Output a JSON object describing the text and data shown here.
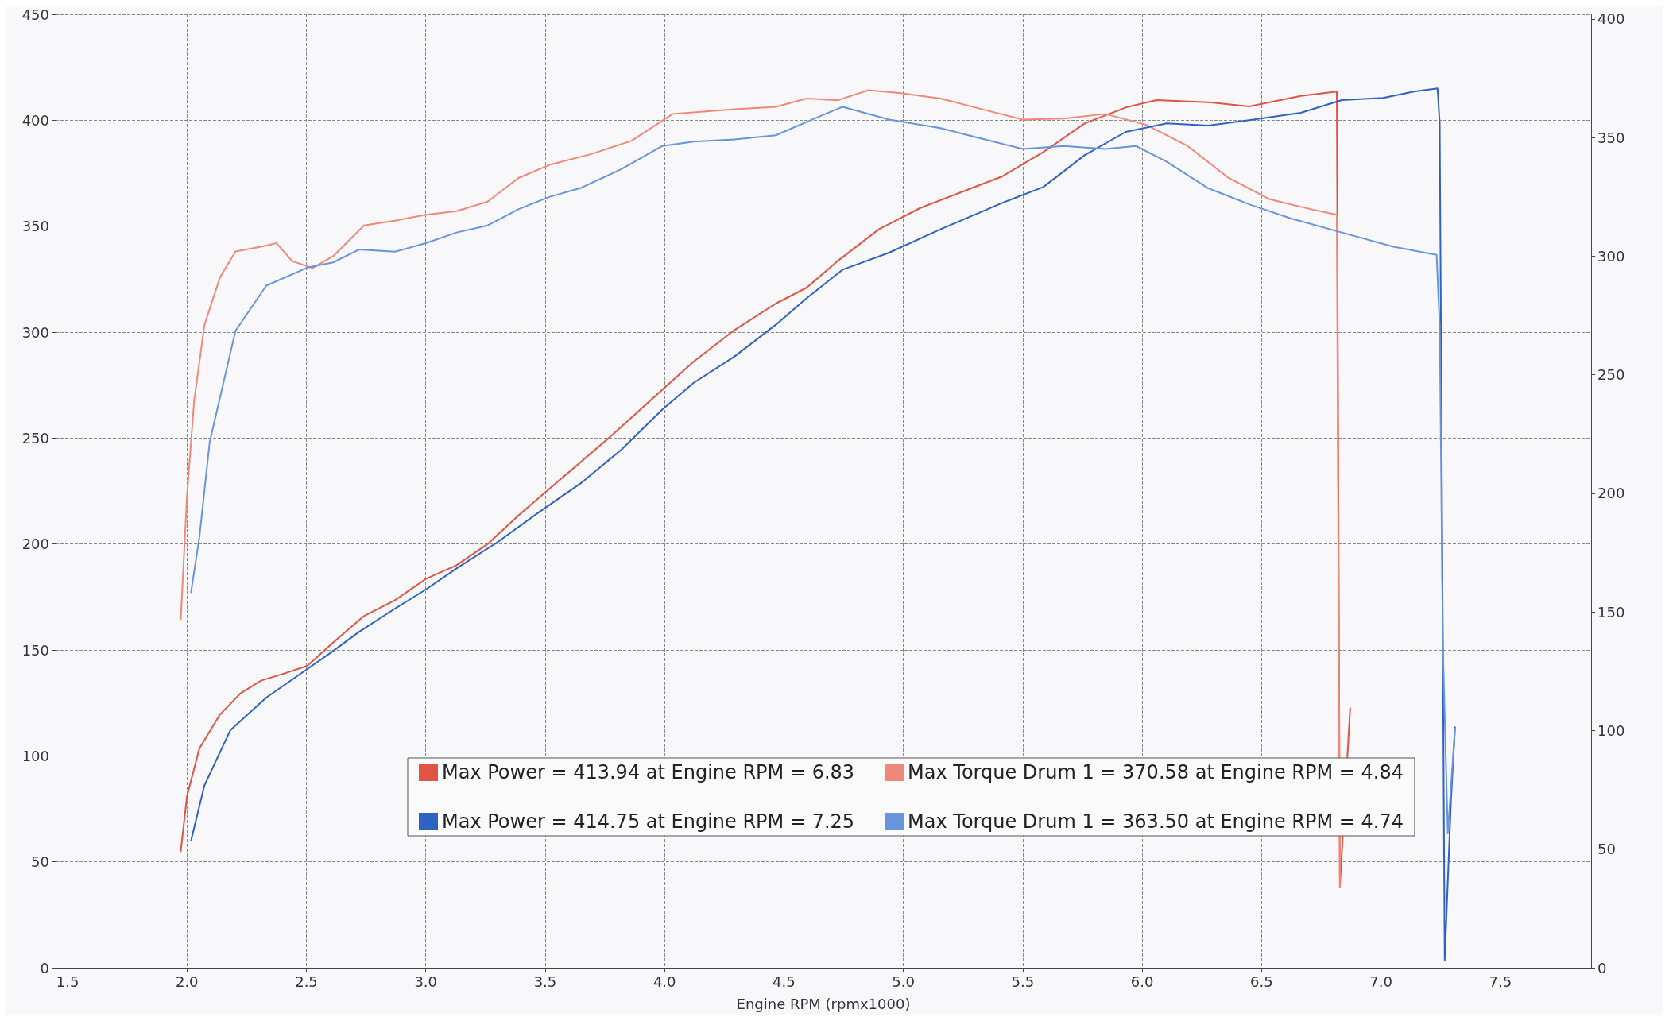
{
  "chart_data": {
    "type": "line",
    "xlabel": "Engine RPM (rpmx1000)",
    "xlim": [
      1.45,
      7.88
    ],
    "xticks": [
      1.5,
      {
        "value": 2,
        "label": "2.0"
      },
      2.5,
      {
        "value": 3,
        "label": "3.0"
      },
      3.5,
      {
        "value": 4,
        "label": "4.0"
      },
      4.5,
      {
        "value": 5,
        "label": "5.0"
      },
      5.5,
      {
        "value": 6,
        "label": "6.0"
      },
      6.5,
      {
        "value": 7,
        "label": "7.0"
      },
      7.5
    ],
    "ylim": [
      0,
      450
    ],
    "yticks": [
      0,
      50,
      100,
      150,
      200,
      250,
      300,
      350,
      400,
      450
    ],
    "y2lim": [
      0,
      402
    ],
    "y2ticks": [
      0,
      50,
      100,
      150,
      200,
      250,
      300,
      350,
      400
    ],
    "grid": true,
    "legend": "bottom",
    "marker": "none",
    "line_style": "solid",
    "series": [
      {
        "name": "Max Power = 413.94 at Engine RPM = 6.83",
        "color": "#e05444",
        "x": [
          1.974,
          2.0,
          2.052,
          2.138,
          2.224,
          2.31,
          2.397,
          2.504,
          2.612,
          2.741,
          2.871,
          3.0,
          3.129,
          3.259,
          3.388,
          3.517,
          3.647,
          3.776,
          3.948,
          4.121,
          4.293,
          4.466,
          4.595,
          4.724,
          4.897,
          5.069,
          5.241,
          5.414,
          5.586,
          5.759,
          5.931,
          6.06,
          6.276,
          6.448,
          6.664,
          6.815,
          6.828,
          6.871
        ],
        "values": [
          55,
          81,
          103.5,
          119.5,
          129.5,
          135.5,
          138.5,
          142.5,
          153.5,
          166,
          173.5,
          183.5,
          190,
          200,
          213.5,
          226,
          238.5,
          251,
          268.5,
          286,
          301,
          313.5,
          321,
          333.5,
          348.5,
          358.5,
          366,
          373.5,
          385,
          398.5,
          406,
          409.5,
          408.5,
          406.5,
          411.5,
          413.5,
          38.5,
          122.5
        ]
      },
      {
        "name": "Max Torque Drum 1 = 370.58 at Engine RPM = 4.84",
        "color": "#f0887a",
        "axis": "y2",
        "x": [
          1.974,
          2.0,
          2.03,
          2.073,
          2.138,
          2.203,
          2.31,
          2.375,
          2.44,
          2.526,
          2.612,
          2.741,
          2.871,
          3.0,
          3.129,
          3.259,
          3.388,
          3.517,
          3.69,
          3.862,
          4.034,
          4.164,
          4.293,
          4.466,
          4.595,
          4.724,
          4.853,
          4.983,
          5.155,
          5.328,
          5.5,
          5.672,
          5.845,
          6.017,
          6.19,
          6.362,
          6.534,
          6.707,
          6.815,
          6.828
        ],
        "values": [
          147,
          199,
          239,
          271,
          291,
          302,
          304,
          305.5,
          298,
          295,
          300,
          313,
          315,
          317.5,
          319,
          323,
          333,
          338.5,
          343,
          348.7,
          360,
          361,
          362,
          363,
          366.5,
          365.7,
          370,
          368.8,
          366.5,
          362,
          357.6,
          358,
          360,
          355.4,
          346.5,
          333,
          324,
          319.8,
          317.5,
          34
        ]
      },
      {
        "name": "Max Power = 414.75 at Engine RPM = 7.25",
        "color": "#2f62c0",
        "x": [
          2.017,
          2.073,
          2.181,
          2.332,
          2.504,
          2.612,
          2.72,
          2.871,
          3.0,
          3.129,
          3.302,
          3.474,
          3.647,
          3.819,
          3.991,
          4.121,
          4.293,
          4.466,
          4.595,
          4.746,
          4.94,
          5.155,
          5.414,
          5.586,
          5.759,
          5.931,
          6.103,
          6.276,
          6.448,
          6.664,
          6.836,
          7.009,
          7.138,
          7.237,
          7.246,
          7.267,
          7.293,
          7.31
        ],
        "values": [
          60,
          86,
          112,
          127.5,
          141,
          149.5,
          158.5,
          169.5,
          178.5,
          188.5,
          201,
          215,
          228.5,
          244.5,
          263.5,
          276,
          288.5,
          303.5,
          316,
          329.5,
          337.5,
          348.5,
          361,
          368.5,
          383.5,
          394.5,
          398.5,
          397.5,
          400,
          403.5,
          409.5,
          410.5,
          413.5,
          415,
          398.5,
          3.5,
          78.5,
          113.5
        ]
      },
      {
        "name": "Max Torque Drum 1 = 363.50 at Engine RPM = 4.74",
        "color": "#6894dc",
        "axis": "y2",
        "x": [
          2.017,
          2.052,
          2.095,
          2.203,
          2.332,
          2.504,
          2.612,
          2.72,
          2.871,
          3.0,
          3.129,
          3.259,
          3.388,
          3.517,
          3.647,
          3.819,
          3.991,
          4.121,
          4.293,
          4.466,
          4.638,
          4.746,
          4.94,
          5.155,
          5.328,
          5.5,
          5.672,
          5.845,
          5.974,
          6.103,
          6.276,
          6.448,
          6.621,
          6.836,
          7.052,
          7.233,
          7.246,
          7.259,
          7.28,
          7.31
        ],
        "values": [
          158.3,
          181.5,
          221.6,
          268.5,
          287.6,
          295.2,
          297.4,
          302.8,
          301.9,
          305.5,
          310,
          313,
          319.8,
          325,
          328.7,
          336.7,
          346.5,
          348.3,
          349.2,
          351,
          358.5,
          363,
          357.6,
          354,
          349.6,
          345.2,
          346.5,
          345.2,
          346.5,
          339.8,
          328.7,
          321.9,
          316,
          310,
          304,
          300.6,
          270.7,
          137,
          56.6,
          101
        ]
      }
    ]
  }
}
